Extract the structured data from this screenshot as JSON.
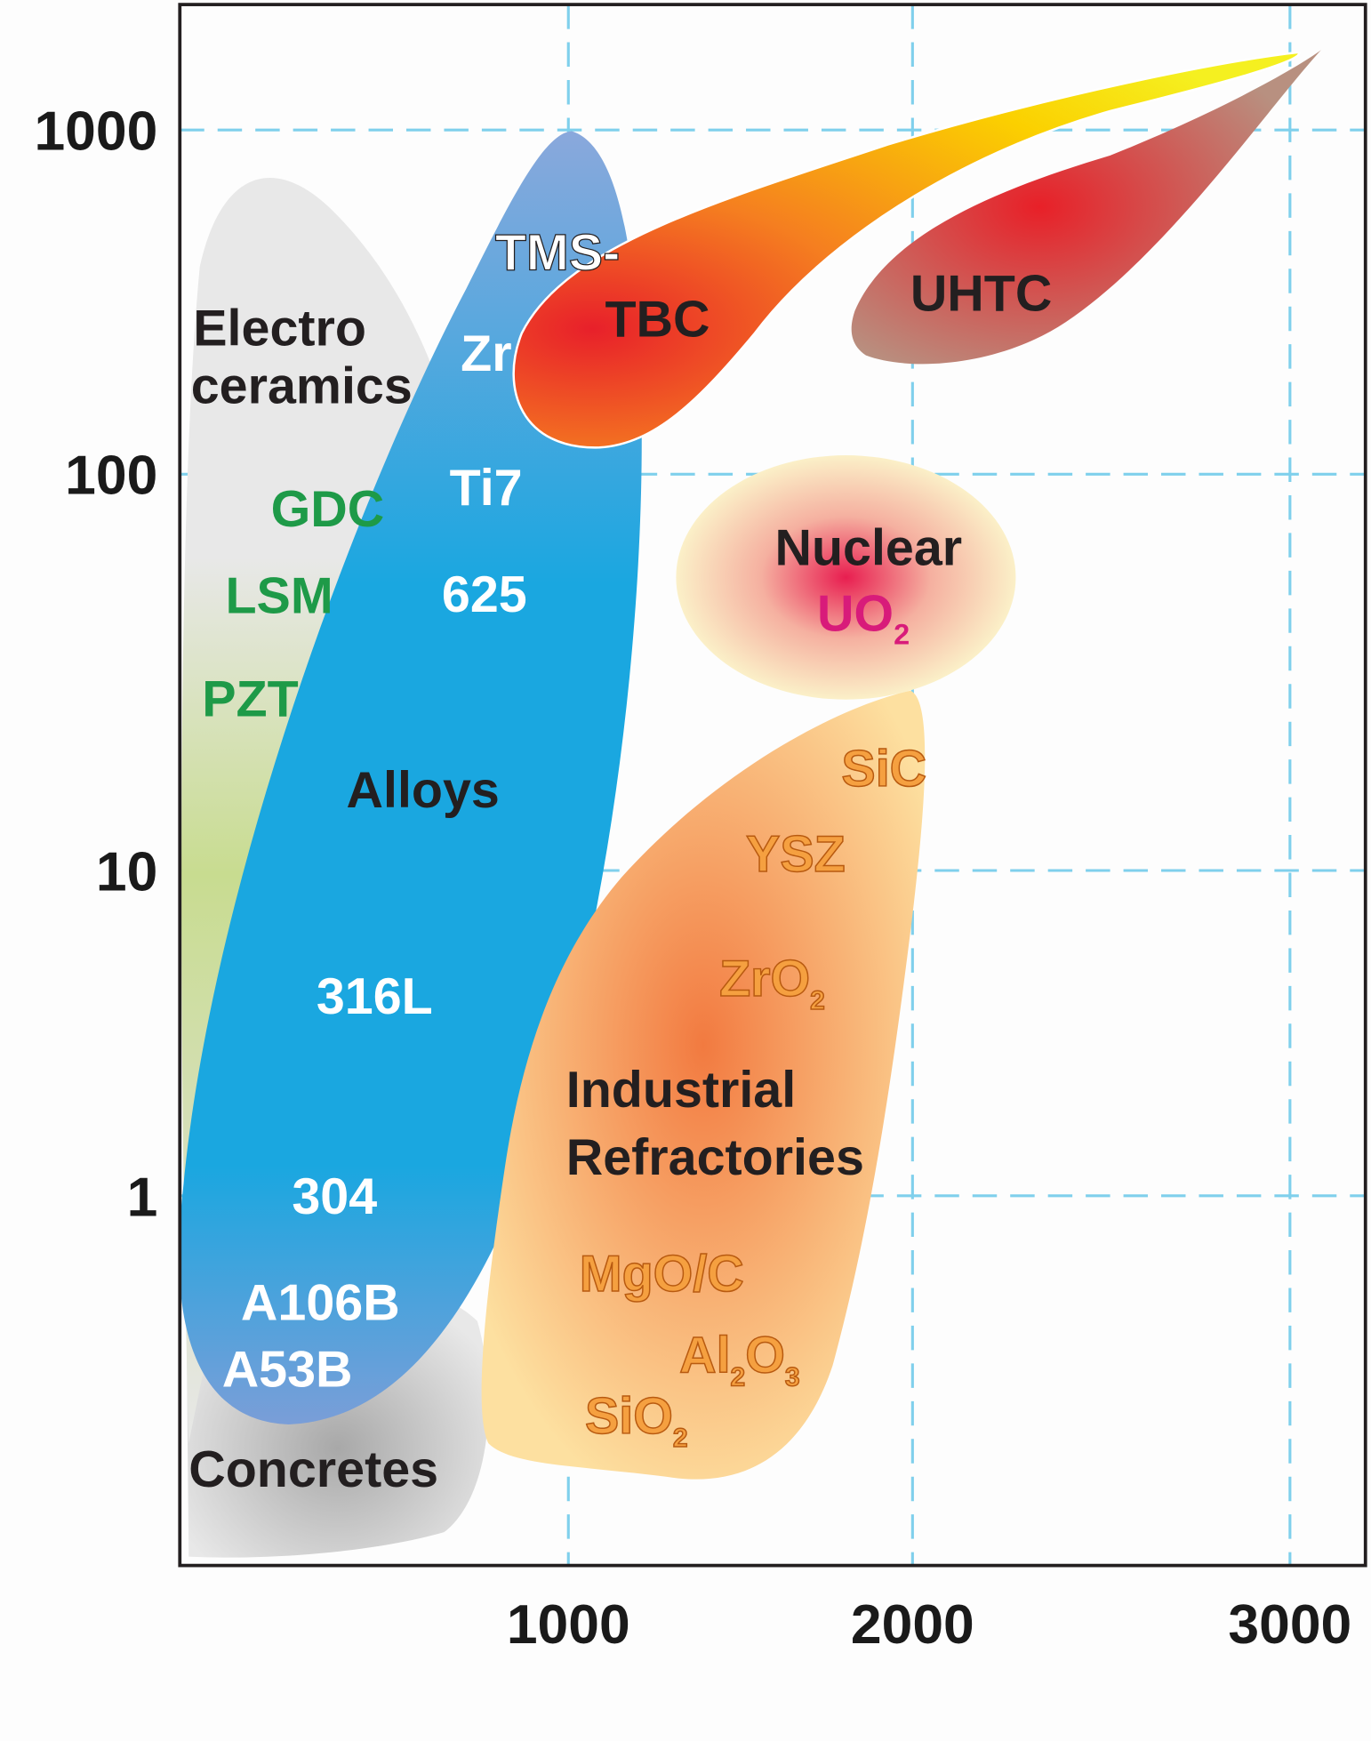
{
  "chart_data": {
    "type": "region-map",
    "x_ticks": [
      "1000",
      "2000",
      "3000"
    ],
    "y_ticks": [
      "1000",
      "100",
      "10",
      "1"
    ],
    "y_scale": "log",
    "grid": true,
    "regions": [
      {
        "name": "Electro ceramics",
        "lines": [
          "Electro",
          "ceramics"
        ],
        "members": [
          "GDC",
          "LSM",
          "PZT"
        ],
        "color": "#e6e6e6"
      },
      {
        "name": "Alloys",
        "members": [
          "TMS-",
          "Zr",
          "Ti7",
          "625",
          "316L",
          "304",
          "A106B",
          "A53B"
        ],
        "color": "#1aa7e0"
      },
      {
        "name": "TBC",
        "color": "#f07a20"
      },
      {
        "name": "UHTC",
        "color": "#c0504d"
      },
      {
        "name": "Nuclear",
        "members": [
          "UO2"
        ],
        "color": "#f5e6b0"
      },
      {
        "name": "Industrial Refractories",
        "lines": [
          "Industrial",
          "Refractories"
        ],
        "members": [
          "SiC",
          "YSZ",
          "ZrO2",
          "MgO/C",
          "Al2O3",
          "SiO2"
        ],
        "color": "#f5a060"
      },
      {
        "name": "Concretes",
        "color": "#cccccc"
      }
    ],
    "labels": {
      "electro1": "Electro",
      "electro2": "ceramics",
      "gdc": "GDC",
      "lsm": "LSM",
      "pzt": "PZT",
      "tms": "TMS-",
      "zr": "Zr",
      "ti7": "Ti7",
      "i625": "625",
      "alloys": "Alloys",
      "s316": "316L",
      "s304": "304",
      "a106": "A106B",
      "a53": "A53B",
      "tbc": "TBC",
      "uhtc": "UHTC",
      "nuclear": "Nuclear",
      "uo": "UO",
      "sub2": "2",
      "sic": "SiC",
      "ysz": "YSZ",
      "zro": "ZrO",
      "ind1": "Industrial",
      "ind2": "Refractories",
      "mgo": "MgO/C",
      "al": "Al",
      "o": "O",
      "sub3": "3",
      "sio": "SiO",
      "concretes": "Concretes"
    }
  }
}
